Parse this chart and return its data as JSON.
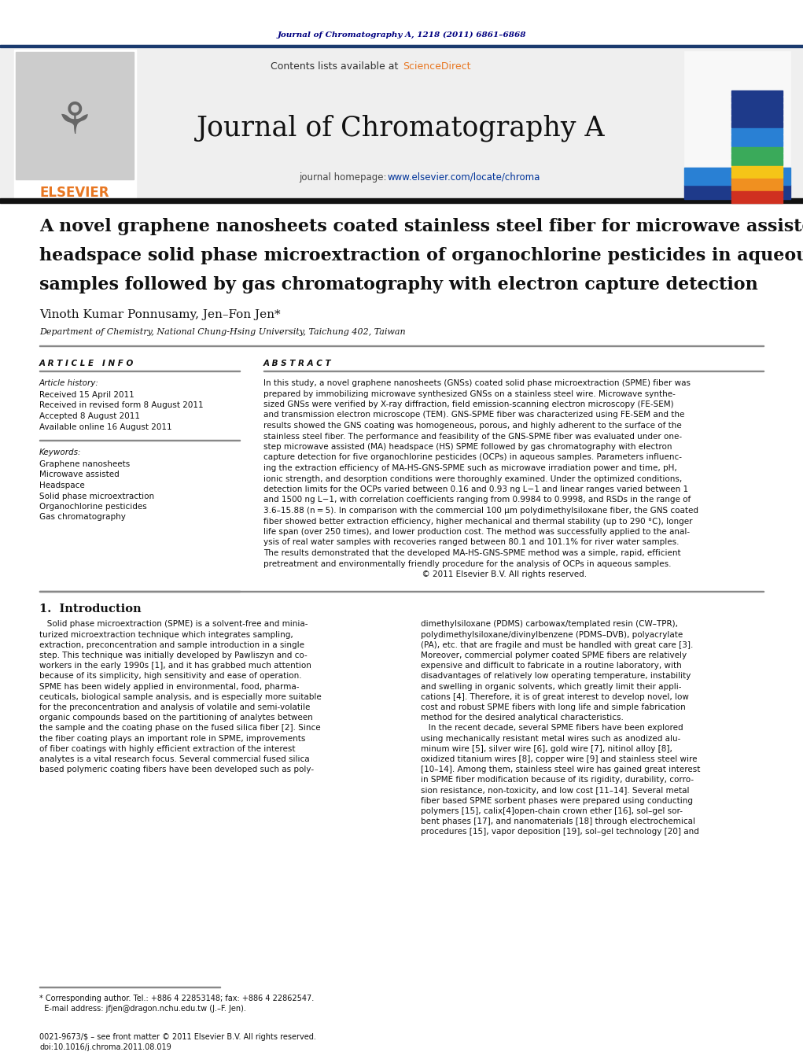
{
  "page_bg": "#ffffff",
  "top_journal_ref": "Journal of Chromatography A, 1218 (2011) 6861–6868",
  "top_ref_color": "#000080",
  "header_bg": "#efefef",
  "header_border_top_color": "#1a3a6e",
  "header_border_bottom_color": "#111111",
  "sciencedirect_color": "#e87722",
  "journal_name": "Journal of Chromatography A",
  "homepage_url_color": "#003399",
  "elsevier_color": "#e87722",
  "article_title_line1": "A novel graphene nanosheets coated stainless steel fiber for microwave assisted",
  "article_title_line2": "headspace solid phase microextraction of organochlorine pesticides in aqueous",
  "article_title_line3": "samples followed by gas chromatography with electron capture detection",
  "authors": "Vinoth Kumar Ponnusamy, Jen–Fon Jen*",
  "affiliation": "Department of Chemistry, National Chung-Hsing University, Taichung 402, Taiwan",
  "article_info_title": "A R T I C L E   I N F O",
  "article_history_title": "Article history:",
  "received1": "Received 15 April 2011",
  "received2": "Received in revised form 8 August 2011",
  "accepted": "Accepted 8 August 2011",
  "available": "Available online 16 August 2011",
  "keywords_title": "Keywords:",
  "keywords": [
    "Graphene nanosheets",
    "Microwave assisted",
    "Headspace",
    "Solid phase microextraction",
    "Organochlorine pesticides",
    "Gas chromatography"
  ],
  "abstract_title": "A B S T R A C T",
  "abstract_lines": [
    "In this study, a novel graphene nanosheets (GNSs) coated solid phase microextraction (SPME) fiber was",
    "prepared by immobilizing microwave synthesized GNSs on a stainless steel wire. Microwave synthe-",
    "sized GNSs were verified by X-ray diffraction, field emission-scanning electron microscopy (FE-SEM)",
    "and transmission electron microscope (TEM). GNS-SPME fiber was characterized using FE-SEM and the",
    "results showed the GNS coating was homogeneous, porous, and highly adherent to the surface of the",
    "stainless steel fiber. The performance and feasibility of the GNS-SPME fiber was evaluated under one-",
    "step microwave assisted (MA) headspace (HS) SPME followed by gas chromatography with electron",
    "capture detection for five organochlorine pesticides (OCPs) in aqueous samples. Parameters influenc-",
    "ing the extraction efficiency of MA-HS-GNS-SPME such as microwave irradiation power and time, pH,",
    "ionic strength, and desorption conditions were thoroughly examined. Under the optimized conditions,",
    "detection limits for the OCPs varied between 0.16 and 0.93 ng L−1 and linear ranges varied between 1",
    "and 1500 ng L−1, with correlation coefficients ranging from 0.9984 to 0.9998, and RSDs in the range of",
    "3.6–15.88 (n = 5). In comparison with the commercial 100 μm polydimethylsiloxane fiber, the GNS coated",
    "fiber showed better extraction efficiency, higher mechanical and thermal stability (up to 290 °C), longer",
    "life span (over 250 times), and lower production cost. The method was successfully applied to the anal-",
    "ysis of real water samples with recoveries ranged between 80.1 and 101.1% for river water samples.",
    "The results demonstrated that the developed MA-HS-GNS-SPME method was a simple, rapid, efficient",
    "pretreatment and environmentally friendly procedure for the analysis of OCPs in aqueous samples.",
    "                                                              © 2011 Elsevier B.V. All rights reserved."
  ],
  "intro_title": "1.  Introduction",
  "intro_left_lines": [
    "   Solid phase microextraction (SPME) is a solvent-free and minia-",
    "turized microextraction technique which integrates sampling,",
    "extraction, preconcentration and sample introduction in a single",
    "step. This technique was initially developed by Pawliszyn and co-",
    "workers in the early 1990s [1], and it has grabbed much attention",
    "because of its simplicity, high sensitivity and ease of operation.",
    "SPME has been widely applied in environmental, food, pharma-",
    "ceuticals, biological sample analysis, and is especially more suitable",
    "for the preconcentration and analysis of volatile and semi-volatile",
    "organic compounds based on the partitioning of analytes between",
    "the sample and the coating phase on the fused silica fiber [2]. Since",
    "the fiber coating plays an important role in SPME, improvements",
    "of fiber coatings with highly efficient extraction of the interest",
    "analytes is a vital research focus. Several commercial fused silica",
    "based polymeric coating fibers have been developed such as poly-"
  ],
  "intro_right_lines": [
    "dimethylsiloxane (PDMS) carbowax/templated resin (CW–TPR),",
    "polydimethylsiloxane/divinylbenzene (PDMS–DVB), polyacrylate",
    "(PA), etc. that are fragile and must be handled with great care [3].",
    "Moreover, commercial polymer coated SPME fibers are relatively",
    "expensive and difficult to fabricate in a routine laboratory, with",
    "disadvantages of relatively low operating temperature, instability",
    "and swelling in organic solvents, which greatly limit their appli-",
    "cations [4]. Therefore, it is of great interest to develop novel, low",
    "cost and robust SPME fibers with long life and simple fabrication",
    "method for the desired analytical characteristics.",
    "   In the recent decade, several SPME fibers have been explored",
    "using mechanically resistant metal wires such as anodized alu-",
    "minum wire [5], silver wire [6], gold wire [7], nitinol alloy [8],",
    "oxidized titanium wires [8], copper wire [9] and stainless steel wire",
    "[10–14]. Among them, stainless steel wire has gained great interest",
    "in SPME fiber modification because of its rigidity, durability, corro-",
    "sion resistance, non-toxicity, and low cost [11–14]. Several metal",
    "fiber based SPME sorbent phases were prepared using conducting",
    "polymers [15], calix[4]open-chain crown ether [16], sol–gel sor-",
    "bent phases [17], and nanomaterials [18] through electrochemical",
    "procedures [15], vapor deposition [19], sol–gel technology [20] and"
  ],
  "footnote_line1": "* Corresponding author. Tel.: +886 4 22853148; fax: +886 4 22862547.",
  "footnote_line2": "  E-mail address: jfjen@dragon.nchu.edu.tw (J.–F. Jen).",
  "footer_line1": "0021-9673/$ – see front matter © 2011 Elsevier B.V. All rights reserved.",
  "footer_line2": "doi:10.1016/j.chroma.2011.08.019",
  "cover_bar_colors": [
    "#1e3a8a",
    "#1e3a8a",
    "#1e3a8a",
    "#1e3a8a",
    "#1e3a8a",
    "#1e3a8a",
    "#2980d4",
    "#2980d4",
    "#2980d4",
    "#3aaa5a",
    "#3aaa5a",
    "#3aaa5a",
    "#f5c518",
    "#f5c518",
    "#f09020",
    "#f09020",
    "#d03020",
    "#d03020"
  ]
}
